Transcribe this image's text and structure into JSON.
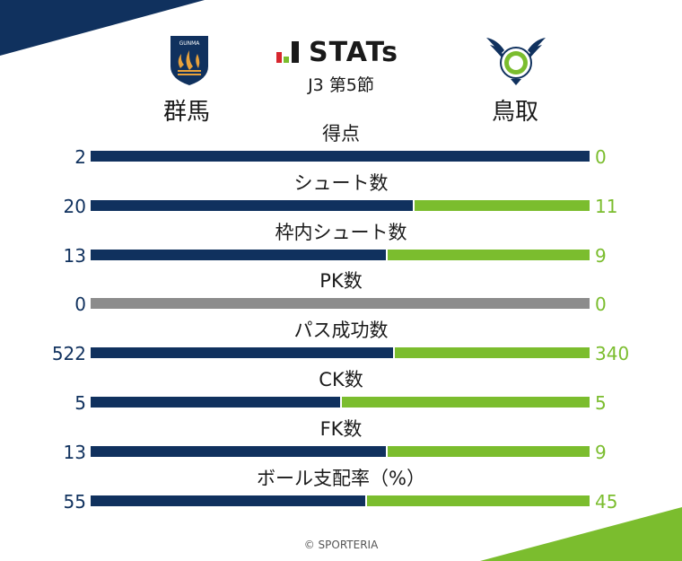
{
  "header": {
    "brand": "STATs",
    "subtitle": "J3 第5節",
    "home_team": "群馬",
    "away_team": "鳥取",
    "home_crest_text": "GUNMA"
  },
  "colors": {
    "home": "#10315e",
    "away": "#7bbd2e",
    "neutral": "#8c8c8c"
  },
  "stats": [
    {
      "label": "得点",
      "home": "2",
      "away": "0",
      "home_share": 1.0
    },
    {
      "label": "シュート数",
      "home": "20",
      "away": "11",
      "home_share": 0.645
    },
    {
      "label": "枠内シュート数",
      "home": "13",
      "away": "9",
      "home_share": 0.591
    },
    {
      "label": "PK数",
      "home": "0",
      "away": "0",
      "home_share": 0.5,
      "neutral": true
    },
    {
      "label": "パス成功数",
      "home": "522",
      "away": "340",
      "home_share": 0.606
    },
    {
      "label": "CK数",
      "home": "5",
      "away": "5",
      "home_share": 0.5
    },
    {
      "label": "FK数",
      "home": "13",
      "away": "9",
      "home_share": 0.591
    },
    {
      "label": "ボール支配率（%）",
      "home": "55",
      "away": "45",
      "home_share": 0.55
    }
  ],
  "footer": {
    "copyright": "© SPORTERIA"
  }
}
